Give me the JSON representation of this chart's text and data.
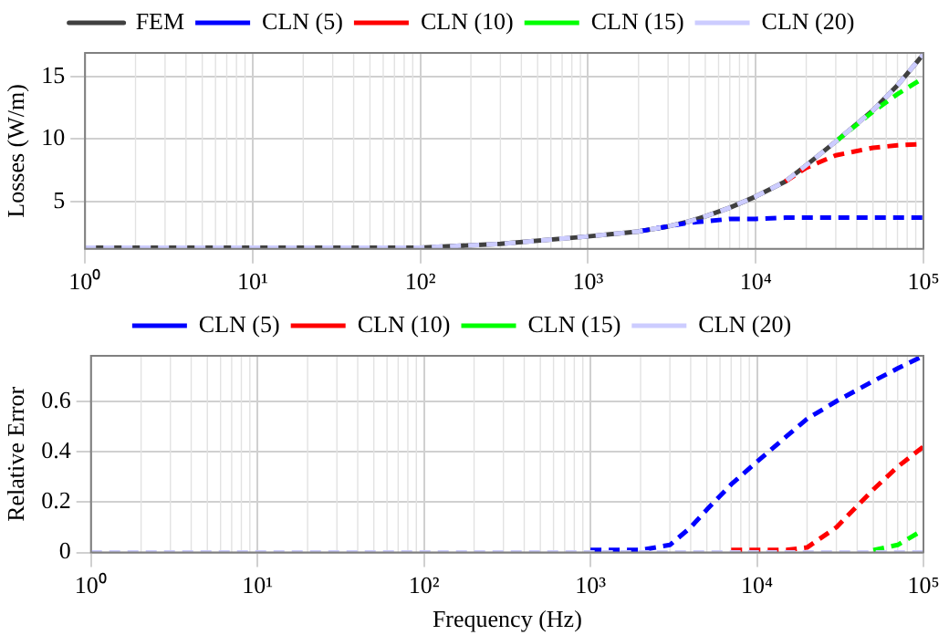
{
  "chart_data": [
    {
      "type": "line",
      "ylabel": "Losses (W/m)",
      "log": "x",
      "grid": true,
      "legend": "top",
      "xlim": [
        1,
        100000
      ],
      "ylim": [
        1.2,
        16.9
      ],
      "xticks": [
        {
          "value": 1,
          "label": "10⁰"
        },
        {
          "value": 10,
          "label": "10¹"
        },
        {
          "value": 100,
          "label": "10²"
        },
        {
          "value": 1000,
          "label": "10³"
        },
        {
          "value": 10000,
          "label": "10⁴"
        },
        {
          "value": 100000,
          "label": "10⁵"
        }
      ],
      "yticks": [
        5,
        10,
        15
      ],
      "x": [
        1,
        10,
        100,
        300,
        1000,
        2000,
        3000,
        4000,
        5000,
        7000,
        10000,
        15000,
        20000,
        30000,
        50000,
        70000,
        100000
      ],
      "series": [
        {
          "name": "FEM",
          "color": "#404040",
          "line_style": "solid",
          "values": [
            1.3,
            1.3,
            1.3,
            1.6,
            2.2,
            2.6,
            3.0,
            3.4,
            3.8,
            4.5,
            5.4,
            6.6,
            7.9,
            9.8,
            12.3,
            14.3,
            16.8
          ]
        },
        {
          "name": "CLN (5)",
          "color": "#0000ff",
          "line_style": "dashed",
          "values": [
            null,
            null,
            null,
            null,
            null,
            2.6,
            3.0,
            3.3,
            3.4,
            3.6,
            3.6,
            3.7,
            3.7,
            3.7,
            3.7,
            3.7,
            3.7
          ]
        },
        {
          "name": "CLN (10)",
          "color": "#ff0000",
          "line_style": "dashed",
          "values": [
            null,
            null,
            null,
            null,
            null,
            null,
            null,
            null,
            null,
            null,
            null,
            6.6,
            7.7,
            8.7,
            9.3,
            9.5,
            9.6
          ]
        },
        {
          "name": "CLN (15)",
          "color": "#00ff00",
          "line_style": "dashed",
          "values": [
            null,
            null,
            null,
            null,
            null,
            null,
            null,
            null,
            null,
            null,
            null,
            null,
            null,
            9.8,
            12.2,
            13.6,
            14.9
          ]
        },
        {
          "name": "CLN (20)",
          "color": "#ccccff",
          "line_style": "dashed",
          "values": [
            1.3,
            1.3,
            1.3,
            1.6,
            2.2,
            2.6,
            3.0,
            3.4,
            3.8,
            4.5,
            5.4,
            6.6,
            7.9,
            9.8,
            12.3,
            14.3,
            16.8
          ]
        }
      ]
    },
    {
      "type": "line",
      "xlabel": "Frequency (Hz)",
      "ylabel": "Relative Error",
      "log": "x",
      "grid": true,
      "legend": "top",
      "xlim": [
        1,
        100000
      ],
      "ylim": [
        0,
        0.78
      ],
      "xticks": [
        {
          "value": 1,
          "label": "10⁰"
        },
        {
          "value": 10,
          "label": "10¹"
        },
        {
          "value": 100,
          "label": "10²"
        },
        {
          "value": 1000,
          "label": "10³"
        },
        {
          "value": 10000,
          "label": "10⁴"
        },
        {
          "value": 100000,
          "label": "10⁵"
        }
      ],
      "yticks": [
        0,
        0.2,
        0.4,
        0.6
      ],
      "x": [
        1,
        10,
        100,
        300,
        1000,
        2000,
        3000,
        4000,
        5000,
        7000,
        10000,
        15000,
        20000,
        30000,
        50000,
        70000,
        100000
      ],
      "series": [
        {
          "name": "CLN (5)",
          "color": "#0000ff",
          "line_style": "dashed",
          "values": [
            null,
            null,
            null,
            null,
            0.01,
            0.01,
            0.03,
            0.1,
            0.17,
            0.27,
            0.36,
            0.46,
            0.53,
            0.6,
            0.68,
            0.73,
            0.78
          ]
        },
        {
          "name": "CLN (10)",
          "color": "#ff0000",
          "line_style": "dashed",
          "values": [
            null,
            null,
            null,
            null,
            null,
            null,
            null,
            null,
            null,
            0.01,
            0.01,
            0.01,
            0.02,
            0.1,
            0.25,
            0.34,
            0.42
          ]
        },
        {
          "name": "CLN (15)",
          "color": "#00ff00",
          "line_style": "dashed",
          "values": [
            null,
            null,
            null,
            null,
            null,
            null,
            null,
            null,
            null,
            null,
            null,
            null,
            null,
            null,
            0.01,
            0.03,
            0.09
          ]
        },
        {
          "name": "CLN (20)",
          "color": "#ccccff",
          "line_style": "dashed",
          "values": [
            0,
            0,
            0,
            0,
            0,
            0,
            0,
            0,
            0,
            0,
            0,
            0,
            0,
            0,
            0,
            0,
            0
          ]
        }
      ]
    }
  ]
}
